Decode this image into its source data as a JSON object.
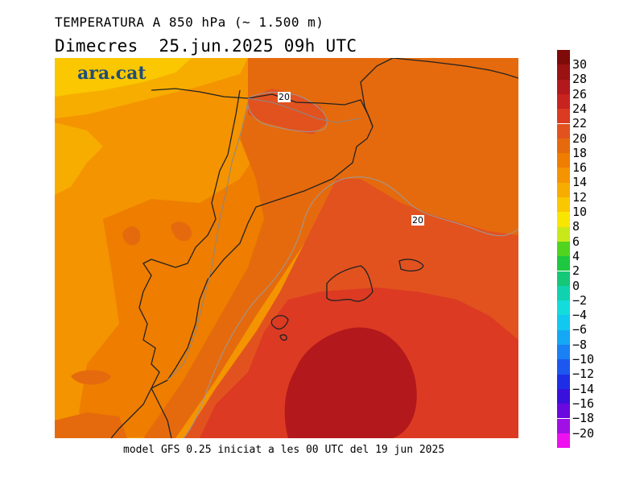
{
  "header": {
    "title": "TEMPERATURA A 850 hPa (~ 1.500 m)",
    "subtitle": "Dimecres  25.jun.2025 09h UTC"
  },
  "logo": {
    "text": "ara.cat",
    "color": "#1f4e79"
  },
  "footer": {
    "text": "model GFS 0.25 iniciat a les 00 UTC del 19 jun 2025"
  },
  "contour_labels": [
    "20",
    "20"
  ],
  "colorbar": {
    "levels": [
      {
        "label": "30",
        "color": "#7f0a0a"
      },
      {
        "label": "28",
        "color": "#9a1212"
      },
      {
        "label": "26",
        "color": "#b3181c"
      },
      {
        "label": "24",
        "color": "#c9231f"
      },
      {
        "label": "22",
        "color": "#dc3a22"
      },
      {
        "label": "20",
        "color": "#e2521f"
      },
      {
        "label": "18",
        "color": "#e56a0d"
      },
      {
        "label": "16",
        "color": "#ee7d00"
      },
      {
        "label": "14",
        "color": "#f49400"
      },
      {
        "label": "12",
        "color": "#f7ad00"
      },
      {
        "label": "10",
        "color": "#fac700"
      },
      {
        "label": "8",
        "color": "#f8e600"
      },
      {
        "label": "6",
        "color": "#c8e81a"
      },
      {
        "label": "4",
        "color": "#50d420"
      },
      {
        "label": "2",
        "color": "#1ec840"
      },
      {
        "label": "0",
        "color": "#14c878"
      },
      {
        "label": "−2",
        "color": "#10d2b0"
      },
      {
        "label": "−4",
        "color": "#12dcdc"
      },
      {
        "label": "−6",
        "color": "#10c8f0"
      },
      {
        "label": "−8",
        "color": "#14a8f4"
      },
      {
        "label": "−10",
        "color": "#1a80f4"
      },
      {
        "label": "−12",
        "color": "#1c58f0"
      },
      {
        "label": "−14",
        "color": "#1e2ee6"
      },
      {
        "label": "−16",
        "color": "#3a10dc"
      },
      {
        "label": "−18",
        "color": "#6a08e0"
      },
      {
        "label": "−20",
        "color": "#a010e6"
      },
      {
        "label": "",
        "color": "#ee10ee"
      }
    ]
  },
  "field_colors": {
    "t10": "#fac700",
    "t12": "#f7ad00",
    "t14": "#f49400",
    "t16": "#ee7d00",
    "t18": "#e56a0d",
    "t20": "#e2521f",
    "t22": "#dc3a22",
    "t24": "#c9231f",
    "t26": "#b3181c"
  }
}
